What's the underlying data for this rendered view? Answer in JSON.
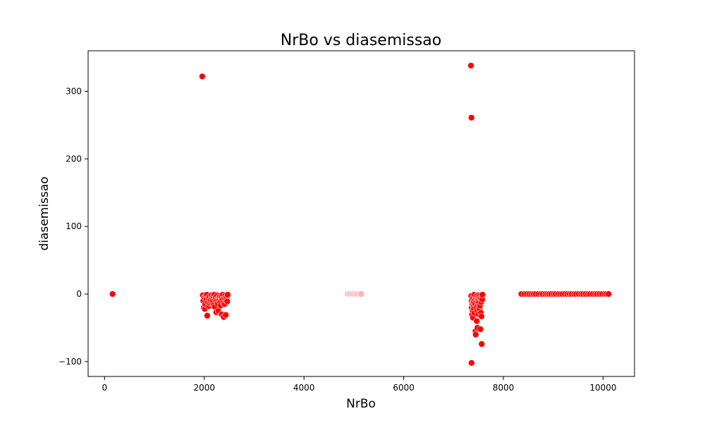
{
  "chart_data": {
    "type": "scatter",
    "title": "NrBo vs diasemissao",
    "xlabel": "NrBo",
    "ylabel": "diasemissao",
    "xlim": [
      -330,
      10630
    ],
    "ylim": [
      -122,
      360
    ],
    "xticks": [
      0,
      2000,
      4000,
      6000,
      8000,
      10000
    ],
    "xtick_labels": [
      "0",
      "2000",
      "4000",
      "6000",
      "8000",
      "10000"
    ],
    "yticks": [
      -100,
      0,
      100,
      200,
      300
    ],
    "ytick_labels": [
      "−100",
      "0",
      "100",
      "200",
      "300"
    ],
    "grid": false,
    "legend": "none",
    "point_color": "#ff0000",
    "light_point_color": "#ffb3b3",
    "series": [
      {
        "points": [
          [
            160,
            0
          ],
          [
            1960,
            322
          ],
          [
            1970,
            -2
          ],
          [
            1980,
            -10
          ],
          [
            1990,
            -20
          ],
          [
            2000,
            -5
          ],
          [
            2010,
            -22
          ],
          [
            2020,
            -15
          ],
          [
            2030,
            -3
          ],
          [
            2040,
            -8
          ],
          [
            2050,
            -1
          ],
          [
            2060,
            -32
          ],
          [
            2070,
            -12
          ],
          [
            2080,
            -6
          ],
          [
            2090,
            -18
          ],
          [
            2100,
            -4
          ],
          [
            2110,
            -14
          ],
          [
            2120,
            -9
          ],
          [
            2140,
            -2
          ],
          [
            2150,
            -13
          ],
          [
            2160,
            -7
          ],
          [
            2170,
            -11
          ],
          [
            2180,
            -3
          ],
          [
            2190,
            -16
          ],
          [
            2200,
            -1
          ],
          [
            2210,
            -19
          ],
          [
            2220,
            -8
          ],
          [
            2230,
            -5
          ],
          [
            2240,
            -27
          ],
          [
            2250,
            -10
          ],
          [
            2260,
            -2
          ],
          [
            2270,
            -14
          ],
          [
            2280,
            -25
          ],
          [
            2290,
            -6
          ],
          [
            2300,
            -9
          ],
          [
            2310,
            -3
          ],
          [
            2320,
            -12
          ],
          [
            2330,
            -17
          ],
          [
            2340,
            -4
          ],
          [
            2350,
            -30
          ],
          [
            2360,
            -8
          ],
          [
            2370,
            -1
          ],
          [
            2380,
            -13
          ],
          [
            2390,
            -34
          ],
          [
            2400,
            -6
          ],
          [
            2410,
            -15
          ],
          [
            2420,
            -2
          ],
          [
            2430,
            -31
          ],
          [
            2440,
            -9
          ],
          [
            2450,
            -4
          ],
          [
            2460,
            -11
          ],
          [
            2470,
            -1
          ],
          [
            7350,
            338
          ],
          [
            7360,
            261
          ],
          [
            7360,
            -102
          ],
          [
            7355,
            -3
          ],
          [
            7360,
            -10
          ],
          [
            7365,
            -20
          ],
          [
            7370,
            -30
          ],
          [
            7375,
            -8
          ],
          [
            7380,
            -15
          ],
          [
            7385,
            -25
          ],
          [
            7390,
            -35
          ],
          [
            7395,
            -5
          ],
          [
            7400,
            -12
          ],
          [
            7405,
            -18
          ],
          [
            7410,
            -22
          ],
          [
            7415,
            -1
          ],
          [
            7420,
            -28
          ],
          [
            7425,
            -9
          ],
          [
            7430,
            -14
          ],
          [
            7440,
            -55
          ],
          [
            7445,
            -60
          ],
          [
            7450,
            -6
          ],
          [
            7455,
            -20
          ],
          [
            7460,
            -3
          ],
          [
            7465,
            -40
          ],
          [
            7470,
            -11
          ],
          [
            7475,
            -25
          ],
          [
            7480,
            -50
          ],
          [
            7485,
            -7
          ],
          [
            7490,
            -16
          ],
          [
            7495,
            -2
          ],
          [
            7500,
            -30
          ],
          [
            7505,
            -9
          ],
          [
            7510,
            -13
          ],
          [
            7515,
            -4
          ],
          [
            7520,
            -22
          ],
          [
            7530,
            -17
          ],
          [
            7540,
            -52
          ],
          [
            7545,
            -6
          ],
          [
            7550,
            -28
          ],
          [
            7555,
            -12
          ],
          [
            7560,
            -33
          ],
          [
            7565,
            -74
          ],
          [
            7570,
            -3
          ],
          [
            7575,
            -8
          ],
          [
            7580,
            -1
          ],
          [
            8360,
            0
          ],
          [
            8420,
            0
          ],
          [
            8470,
            0
          ],
          [
            8520,
            0
          ],
          [
            8570,
            0
          ],
          [
            8610,
            0
          ],
          [
            8650,
            0
          ],
          [
            8700,
            0
          ],
          [
            8750,
            0
          ],
          [
            8790,
            0
          ],
          [
            8840,
            0
          ],
          [
            8880,
            0
          ],
          [
            8920,
            0
          ],
          [
            8960,
            0
          ],
          [
            9010,
            0
          ],
          [
            9050,
            0
          ],
          [
            9100,
            0
          ],
          [
            9140,
            0
          ],
          [
            9180,
            0
          ],
          [
            9230,
            0
          ],
          [
            9280,
            0
          ],
          [
            9330,
            0
          ],
          [
            9370,
            0
          ],
          [
            9420,
            0
          ],
          [
            9460,
            0
          ],
          [
            9510,
            0
          ],
          [
            9560,
            0
          ],
          [
            9600,
            0
          ],
          [
            9650,
            0
          ],
          [
            9700,
            0
          ],
          [
            9740,
            0
          ],
          [
            9790,
            0
          ],
          [
            9840,
            0
          ],
          [
            9880,
            0
          ],
          [
            9930,
            0
          ],
          [
            9980,
            0
          ],
          [
            10030,
            0
          ],
          [
            10070,
            0
          ],
          [
            10110,
            0
          ]
        ],
        "light_points": [
          [
            4880,
            0
          ],
          [
            4910,
            0
          ],
          [
            4940,
            0
          ],
          [
            4970,
            0
          ],
          [
            5000,
            0
          ],
          [
            5030,
            0
          ],
          [
            5060,
            0
          ],
          [
            5090,
            0
          ],
          [
            5120,
            0
          ],
          [
            5150,
            0
          ]
        ]
      }
    ]
  }
}
